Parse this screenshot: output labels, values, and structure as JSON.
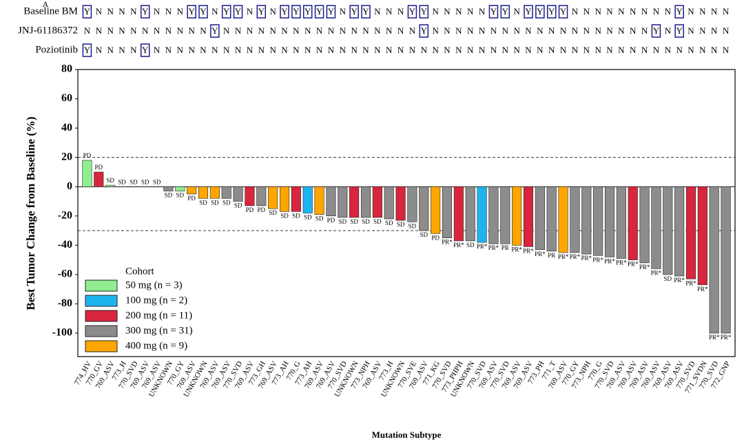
{
  "panel_label": "A",
  "status_rows": {
    "boxed": "Y",
    "rows": [
      {
        "label": "Baseline BM",
        "values": [
          "Y",
          "N",
          "N",
          "N",
          "N",
          "Y",
          "N",
          "N",
          "N",
          "Y",
          "Y",
          "N",
          "Y",
          "Y",
          "N",
          "Y",
          "N",
          "Y",
          "Y",
          "Y",
          "Y",
          "Y",
          "N",
          "Y",
          "Y",
          "N",
          "N",
          "N",
          "Y",
          "Y",
          "N",
          "N",
          "N",
          "N",
          "N",
          "Y",
          "Y",
          "N",
          "Y",
          "Y",
          "Y",
          "Y",
          "N",
          "N",
          "N",
          "N",
          "N",
          "N",
          "N",
          "N",
          "N",
          "Y",
          "N",
          "N",
          "N",
          "N"
        ]
      },
      {
        "label": "JNJ-61186372",
        "values": [
          "N",
          "N",
          "N",
          "N",
          "N",
          "N",
          "N",
          "N",
          "N",
          "N",
          "N",
          "Y",
          "N",
          "N",
          "N",
          "N",
          "N",
          "N",
          "N",
          "N",
          "N",
          "N",
          "N",
          "N",
          "N",
          "N",
          "N",
          "N",
          "N",
          "Y",
          "N",
          "N",
          "N",
          "N",
          "N",
          "N",
          "N",
          "N",
          "N",
          "N",
          "N",
          "N",
          "N",
          "N",
          "N",
          "N",
          "N",
          "N",
          "N",
          "Y",
          "N",
          "Y",
          "N",
          "N",
          "N",
          "N"
        ]
      },
      {
        "label": "Poziotinib",
        "values": [
          "Y",
          "N",
          "N",
          "N",
          "N",
          "Y",
          "N",
          "N",
          "N",
          "N",
          "N",
          "N",
          "N",
          "N",
          "N",
          "N",
          "N",
          "N",
          "N",
          "N",
          "N",
          "N",
          "N",
          "N",
          "N",
          "N",
          "N",
          "N",
          "N",
          "N",
          "N",
          "N",
          "N",
          "N",
          "N",
          "N",
          "N",
          "N",
          "N",
          "N",
          "N",
          "N",
          "N",
          "N",
          "N",
          "N",
          "N",
          "N",
          "N",
          "N",
          "N",
          "N",
          "N",
          "N",
          "N",
          "N"
        ]
      }
    ]
  },
  "chart_data": {
    "type": "bar",
    "y_label": "Best Tumor Change from Baseline (%)",
    "x_label": "Mutation Subtype",
    "ylim": [
      -116,
      80
    ],
    "yticks": [
      -100,
      -80,
      -60,
      -40,
      -20,
      0,
      20,
      40,
      60,
      80
    ],
    "reference_lines": [
      20,
      -30
    ],
    "legend": {
      "title": "Cohort",
      "position": "lower left",
      "entries": [
        {
          "name": "50 mg (n = 3)",
          "color": "#90ee90"
        },
        {
          "name": "100 mg (n = 2)",
          "color": "#1eb4f0"
        },
        {
          "name": "200 mg (n = 11)",
          "color": "#d7263d"
        },
        {
          "name": "300 mg (n = 31)",
          "color": "#8c8c8c"
        },
        {
          "name": "400 mg (n = 9)",
          "color": "#ffa500"
        }
      ]
    },
    "categories": [
      "774_HV",
      "770_GV",
      "769_ASV",
      "773_H",
      "770_SVD",
      "769_ASV",
      "769_ASV",
      "UNKNOWN",
      "770_GY",
      "769_ASV",
      "UNKNOWN",
      "769_ASV",
      "769_ASV",
      "770_SVD",
      "769_ASV",
      "773_GH",
      "769_ASV",
      "773_AH",
      "770_G",
      "773_AH",
      "769_ASV",
      "769_ASV",
      "770_SVD",
      "UNKNOWN",
      "773_NPH",
      "769_ASV",
      "773_H",
      "UNKNOWN",
      "770_SVE",
      "769_ASV",
      "771_KG",
      "770_SVD",
      "773_PHPH",
      "UNKNOWN",
      "770_SVD",
      "769_ASV",
      "770_SVD",
      "769_ASV",
      "769_ASV",
      "773_PH",
      "771_T",
      "769_ASV",
      "770_GY",
      "773_NPH",
      "770_G",
      "770_SVD",
      "769_ASV",
      "769_ASV",
      "769_ASV",
      "769_ASV",
      "769_ASV",
      "769_ASV",
      "770_SVD",
      "771_SVDN",
      "770_SVD",
      "772_GNP"
    ],
    "values": [
      18,
      10,
      1,
      0,
      0,
      0,
      0,
      -3,
      -3,
      -5,
      -8,
      -8,
      -8,
      -10,
      -13,
      -13,
      -15,
      -17,
      -17,
      -18,
      -19,
      -20,
      -21,
      -21,
      -21,
      -21,
      -22,
      -23,
      -24,
      -30,
      -32,
      -35,
      -37,
      -37,
      -38,
      -39,
      -39,
      -40,
      -41,
      -43,
      -44,
      -45,
      -45,
      -46,
      -47,
      -48,
      -49,
      -50,
      -52,
      -56,
      -60,
      -61,
      -63,
      -67,
      -100,
      -100
    ],
    "cohort": [
      0,
      2,
      0,
      3,
      3,
      3,
      3,
      3,
      0,
      4,
      4,
      4,
      3,
      3,
      2,
      3,
      4,
      4,
      2,
      1,
      4,
      3,
      3,
      2,
      3,
      2,
      3,
      2,
      3,
      3,
      4,
      3,
      2,
      3,
      1,
      3,
      3,
      4,
      2,
      3,
      3,
      4,
      3,
      3,
      3,
      3,
      3,
      2,
      3,
      3,
      3,
      3,
      2,
      2,
      3,
      3
    ],
    "response": [
      "PD",
      "PD",
      "SD",
      "SD",
      "SD",
      "SD",
      "SD",
      "SD",
      "SD",
      "PD",
      "SD",
      "SD",
      "SD",
      "SD",
      "PD",
      "PD",
      "SD",
      "SD",
      "SD",
      "SD",
      "SD",
      "PD",
      "SD",
      "SD",
      "SD",
      "SD",
      "SD",
      "SD",
      "SD",
      "SD",
      "PD",
      "PR*",
      "PR*",
      "SD",
      "PR*",
      "PR*",
      "PR",
      "PR*",
      "PR*",
      "PR*",
      "PR",
      "PR*",
      "PR*",
      "PR*",
      "PR*",
      "PR*",
      "PR*",
      "PR*",
      "PR*",
      "PR*",
      "SD",
      "PR*",
      "PR*",
      "PR*",
      "PR*",
      "PR*"
    ]
  }
}
